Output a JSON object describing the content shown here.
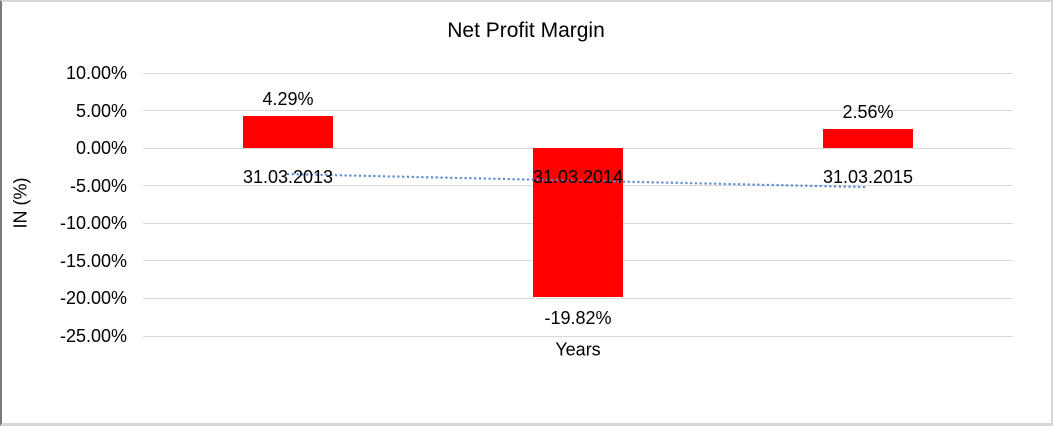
{
  "chart_data": {
    "type": "bar",
    "title": "Net Profit Margin",
    "xlabel": "Years",
    "ylabel": "IN (%)",
    "categories": [
      "31.03.2013",
      "31.03.2014",
      "31.03.2015"
    ],
    "values": [
      4.29,
      -19.82,
      2.56
    ],
    "data_labels": [
      "4.29%",
      "-19.82%",
      "2.56%"
    ],
    "y_ticks": [
      10,
      5,
      0,
      -5,
      -10,
      -15,
      -20,
      -25
    ],
    "y_tick_labels": [
      "10.00%",
      "5.00%",
      "0.00%",
      "-5.00%",
      "-10.00%",
      "-15.00%",
      "-20.00%",
      "-25.00%"
    ],
    "ylim": [
      -25,
      10
    ],
    "grid": true,
    "legend_position": "none",
    "bar_color": "#ff0000",
    "grid_color": "#d9d9d9",
    "text_color": "#000000",
    "trendline": {
      "type": "linear",
      "style": "dotted",
      "color": "#5b8bd0",
      "start_value": -3.46,
      "end_value": -5.19
    }
  }
}
